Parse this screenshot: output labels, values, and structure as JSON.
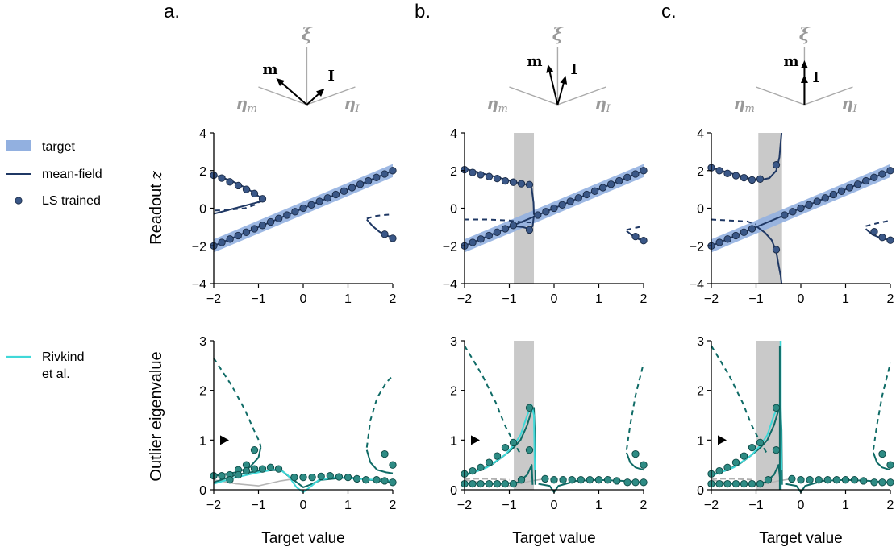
{
  "panels": [
    {
      "id": "a",
      "label": "a.",
      "top_shaded": null,
      "bottom_shaded": null
    },
    {
      "id": "b",
      "label": "b.",
      "top_shaded": [
        -0.9,
        -0.45
      ],
      "bottom_shaded": [
        -0.9,
        -0.45
      ]
    },
    {
      "id": "c",
      "label": "c.",
      "top_shaded": [
        -0.95,
        -0.42
      ],
      "bottom_shaded": [
        -1.0,
        -0.43
      ]
    }
  ],
  "vector_labels": {
    "xi": "ξ",
    "m": "m",
    "I": "I",
    "eta_m": "η",
    "eta_m_sub": "m",
    "eta_I": "η",
    "eta_I_sub": "I"
  },
  "legend_top": [
    {
      "label": "target",
      "kind": "band",
      "color": "#92b0e0"
    },
    {
      "label": "mean-field",
      "kind": "line",
      "color": "#1f3864"
    },
    {
      "label": "LS trained",
      "kind": "dot",
      "color": "#2f4f80"
    }
  ],
  "legend_bottom": [
    {
      "label": "Rivkind",
      "label2": "et al.",
      "kind": "line",
      "color": "#40d8d8"
    }
  ],
  "colors": {
    "target": "#92b0e0",
    "meanfield": "#1f3864",
    "dot": "#3a5787",
    "teal": "#0f6b66",
    "dotteal": "#2e8b84",
    "rivkind": "#40d8d8",
    "shade": "#c9c9c9",
    "gray": "#b5b5b5"
  },
  "chart_data": [
    {
      "type": "line",
      "row": "top",
      "ylabel": "Readout ",
      "ylabel_var": "z",
      "xlim": [
        -2,
        2
      ],
      "ylim": [
        -4,
        4
      ],
      "xticks": [
        "−2",
        "−1",
        "0",
        "1",
        "2"
      ],
      "yticks": [
        "4",
        "2",
        "0",
        "−2",
        "−4"
      ],
      "target_band": {
        "slope": 1,
        "intercept": 0,
        "halfwidth": 0.35
      }
    },
    {
      "type": "line",
      "row": "bottom",
      "ylabel": "Outlier eigenvalue",
      "xlabel": "Target value",
      "xlim": [
        -2,
        2
      ],
      "ylim": [
        0,
        3
      ],
      "xticks": [
        "−2",
        "−1",
        "0",
        "1",
        "2"
      ],
      "yticks": [
        "3",
        "2",
        "1",
        "0"
      ],
      "marker_y": 1
    }
  ]
}
